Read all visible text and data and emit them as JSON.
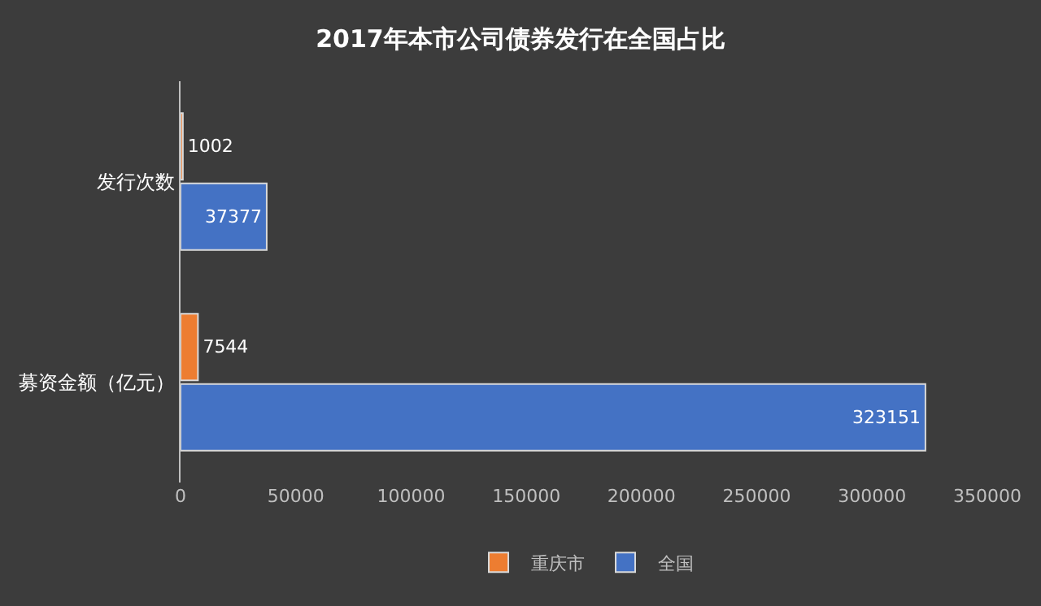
{
  "chart_data": {
    "type": "bar",
    "orientation": "horizontal",
    "title": "2017年本市公司债券发行在全国占比",
    "categories": [
      "发行次数",
      "募资金额（亿元）"
    ],
    "series": [
      {
        "name": "重庆市",
        "color": "#ed7d31",
        "values": [
          1002,
          7544
        ]
      },
      {
        "name": "全国",
        "color": "#4472c4",
        "values": [
          37377,
          323151
        ]
      }
    ],
    "xlim": [
      0,
      350000
    ],
    "xticks": [
      0,
      50000,
      100000,
      150000,
      200000,
      250000,
      300000,
      350000
    ],
    "data_labels": true,
    "grid": false,
    "legend": "bottom"
  }
}
